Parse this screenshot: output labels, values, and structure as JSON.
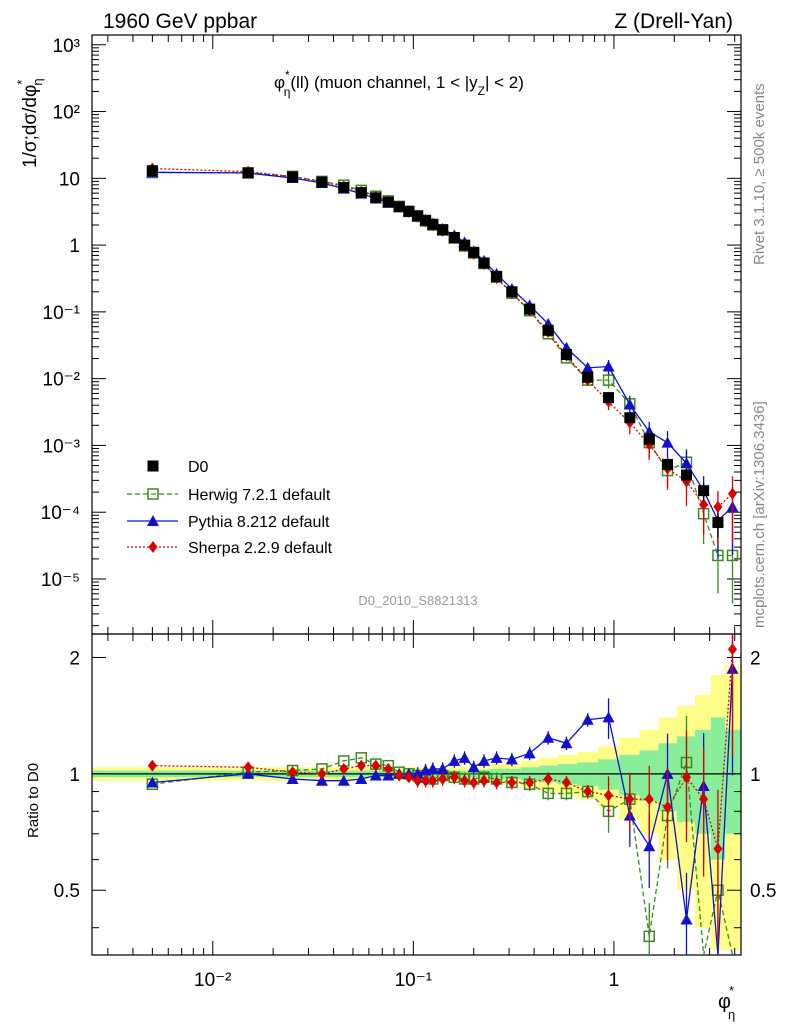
{
  "header": {
    "left": "1960 GeV ppbar",
    "right": "Z (Drell-Yan)"
  },
  "side_text": {
    "rivet": "Rivet 3.1.10, ≥ 500k events",
    "mcplots": "mcplots.cern.ch [arXiv:1306.3436]"
  },
  "watermark": "D0_2010_S8821313",
  "chart_data": {
    "type": "scatter",
    "title": "φ*η(ll) (muon channel, 1 < |yZ| < 2)",
    "title_parts": {
      "pre": "φ",
      "sup": "*",
      "sub": "η",
      "mid": "(ll) (muon channel, 1 < |y",
      "sub2": "Z",
      "post": "| < 2)"
    },
    "xlabel": "φ*η",
    "xlabel_parts": {
      "main": "φ",
      "sup": "*",
      "sub": "η"
    },
    "ylabel_parts": {
      "main": "1/σ;dσ/dφ",
      "sup": "*",
      "sub": "η"
    },
    "ratio_ylabel": "Ratio to D0",
    "x_log": true,
    "xlim": [
      0.0025,
      4.3
    ],
    "ylim": [
      1.5e-06,
      1400
    ],
    "ratio_ylim": [
      0.34,
      2.3
    ],
    "x_ticks": [
      "10⁻²",
      "10⁻¹",
      "1"
    ],
    "y_ticks": [
      "10⁻⁵",
      "10⁻⁴",
      "10⁻³",
      "10⁻²",
      "10⁻¹",
      "1",
      "10",
      "10²",
      "10³"
    ],
    "ratio_ticks": [
      "0.5",
      "1",
      "2"
    ],
    "legend_position": "lower-left",
    "legend": [
      {
        "name": "D0"
      },
      {
        "name": "Herwig 7.2.1 default"
      },
      {
        "name": "Pythia 8.212 default"
      },
      {
        "name": "Sherpa 2.2.9 default"
      }
    ],
    "x": [
      0.005,
      0.015,
      0.025,
      0.035,
      0.045,
      0.055,
      0.065,
      0.075,
      0.085,
      0.095,
      0.105,
      0.115,
      0.125,
      0.14,
      0.16,
      0.18,
      0.2,
      0.225,
      0.26,
      0.31,
      0.38,
      0.47,
      0.58,
      0.74,
      0.94,
      1.2,
      1.5,
      1.85,
      2.3,
      2.8,
      3.3,
      3.9
    ],
    "series": [
      {
        "name": "D0",
        "color": "#000000",
        "values": [
          13,
          12,
          10.5,
          8.8,
          7.3,
          6.1,
          5.1,
          4.4,
          3.75,
          3.2,
          2.75,
          2.35,
          2.05,
          1.7,
          1.3,
          1.0,
          0.78,
          0.54,
          0.34,
          0.2,
          0.11,
          0.053,
          0.023,
          0.0105,
          0.0052,
          0.0026,
          0.00125,
          0.00052,
          0.00036,
          0.00021,
          7e-05,
          0.0
        ],
        "rel_err": [
          0.02,
          0.02,
          0.02,
          0.02,
          0.02,
          0.02,
          0.02,
          0.02,
          0.02,
          0.02,
          0.02,
          0.02,
          0.02,
          0.02,
          0.02,
          0.02,
          0.02,
          0.025,
          0.03,
          0.03,
          0.04,
          0.05,
          0.06,
          0.07,
          0.09,
          0.12,
          0.15,
          0.2,
          0.25,
          0.3,
          0.4,
          0.0
        ]
      },
      {
        "name": "Herwig 7.2.1 default",
        "color": "#3a8c1e",
        "values": [
          12.2,
          12.1,
          10.7,
          9.0,
          7.9,
          6.6,
          5.4,
          4.6,
          3.8,
          3.2,
          2.7,
          2.3,
          2.0,
          1.68,
          1.27,
          0.97,
          0.76,
          0.53,
          0.33,
          0.19,
          0.104,
          0.047,
          0.0205,
          0.0095,
          0.0095,
          0.0042,
          0.0011,
          0.00042,
          0.00056,
          9.5e-05,
          2.25e-05,
          2.25e-05
        ],
        "ratio": [
          0.94,
          1.01,
          1.02,
          1.03,
          1.08,
          1.1,
          1.06,
          1.05,
          1.01,
          1.0,
          0.99,
          0.98,
          0.97,
          0.99,
          0.98,
          0.97,
          0.97,
          0.98,
          0.97,
          0.95,
          0.94,
          0.89,
          0.89,
          0.9,
          0.8,
          0.86,
          0.38,
          0.78,
          1.07,
          0.27,
          0.5,
          0.32
        ]
      },
      {
        "name": "Pythia 8.212 default",
        "color": "#1111cc",
        "values": [
          12.3,
          12.0,
          10.1,
          8.5,
          7.0,
          5.9,
          5.0,
          4.3,
          3.75,
          3.2,
          2.75,
          2.4,
          2.1,
          1.75,
          1.4,
          1.1,
          0.81,
          0.58,
          0.37,
          0.22,
          0.125,
          0.066,
          0.029,
          0.0145,
          0.0152,
          0.0041,
          0.0016,
          0.0011,
          0.00054,
          0.00021,
          7.5e-05,
          0.00012
        ],
        "ratio": [
          0.95,
          1.0,
          0.97,
          0.96,
          0.96,
          0.97,
          0.99,
          0.99,
          1.0,
          1.0,
          1.0,
          1.02,
          1.03,
          1.03,
          1.08,
          1.1,
          1.04,
          1.08,
          1.1,
          1.09,
          1.13,
          1.24,
          1.2,
          1.38,
          1.4,
          0.78,
          0.65,
          1.0,
          0.42,
          0.93,
          0.3,
          1.87
        ]
      },
      {
        "name": "Sherpa 2.2.9 default",
        "color": "#dd0000",
        "values": [
          14.0,
          12.6,
          10.6,
          8.9,
          7.5,
          6.3,
          5.3,
          4.5,
          3.8,
          3.15,
          2.65,
          2.28,
          1.98,
          1.64,
          1.27,
          0.96,
          0.74,
          0.52,
          0.32,
          0.19,
          0.104,
          0.05,
          0.022,
          0.0095,
          0.0045,
          0.0022,
          0.00103,
          0.00045,
          0.00029,
          0.00013,
          0.00012,
          0.00019
        ],
        "ratio": [
          1.05,
          1.04,
          1.01,
          1.0,
          1.03,
          1.05,
          1.05,
          1.03,
          0.99,
          0.98,
          0.96,
          0.96,
          0.96,
          0.97,
          0.98,
          0.96,
          0.95,
          0.96,
          0.95,
          0.95,
          0.95,
          0.97,
          0.95,
          0.9,
          0.88,
          0.86,
          0.86,
          0.82,
          0.98,
          0.86,
          0.64,
          2.1
        ]
      }
    ]
  }
}
